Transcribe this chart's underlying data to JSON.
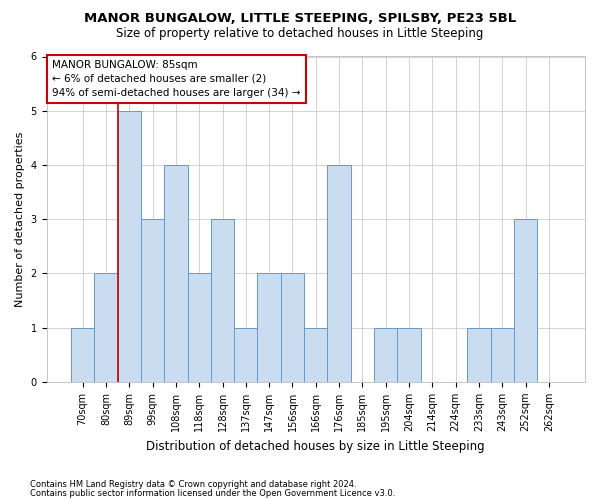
{
  "title1": "MANOR BUNGALOW, LITTLE STEEPING, SPILSBY, PE23 5BL",
  "title2": "Size of property relative to detached houses in Little Steeping",
  "xlabel": "Distribution of detached houses by size in Little Steeping",
  "ylabel": "Number of detached properties",
  "footnote1": "Contains HM Land Registry data © Crown copyright and database right 2024.",
  "footnote2": "Contains public sector information licensed under the Open Government Licence v3.0.",
  "categories": [
    "70sqm",
    "80sqm",
    "89sqm",
    "99sqm",
    "108sqm",
    "118sqm",
    "128sqm",
    "137sqm",
    "147sqm",
    "156sqm",
    "166sqm",
    "176sqm",
    "185sqm",
    "195sqm",
    "204sqm",
    "214sqm",
    "224sqm",
    "233sqm",
    "243sqm",
    "252sqm",
    "262sqm"
  ],
  "values": [
    1,
    2,
    5,
    3,
    4,
    2,
    3,
    1,
    2,
    2,
    1,
    4,
    0,
    1,
    1,
    0,
    0,
    1,
    1,
    3,
    0
  ],
  "bar_color": "#c9dcf0",
  "bar_edge_color": "#6699cc",
  "red_line_color": "#cc0000",
  "property_bin_index": 1.5,
  "annotation_line1": "MANOR BUNGALOW: 85sqm",
  "annotation_line2": "← 6% of detached houses are smaller (2)",
  "annotation_line3": "94% of semi-detached houses are larger (34) →",
  "annotation_box_color": "white",
  "annotation_box_edge_color": "#cc0000",
  "ylim": [
    0,
    6
  ],
  "yticks": [
    0,
    1,
    2,
    3,
    4,
    5,
    6
  ],
  "background_color": "white",
  "grid_color": "#cccccc",
  "title1_fontsize": 9.5,
  "title2_fontsize": 8.5,
  "ylabel_fontsize": 8,
  "xlabel_fontsize": 8.5,
  "tick_fontsize": 7,
  "annot_fontsize": 7.5,
  "footnote_fontsize": 6
}
